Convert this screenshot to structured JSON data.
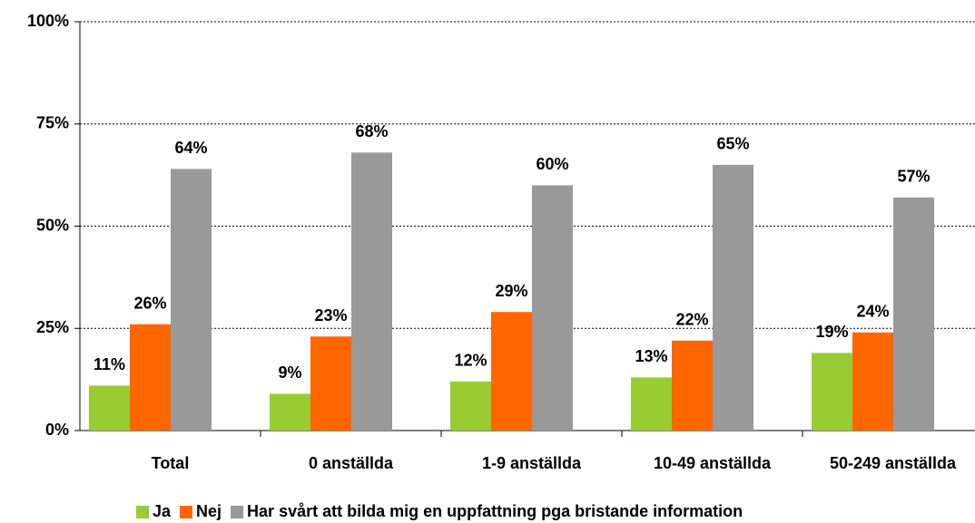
{
  "chart_data": {
    "type": "bar",
    "categories": [
      "Total",
      "0 anställda",
      "1-9 anställda",
      "10-49 anställda",
      "50-249 anställda"
    ],
    "series": [
      {
        "name": "Ja",
        "color": "#99cc33",
        "values": [
          11,
          9,
          12,
          13,
          19
        ],
        "value_labels": [
          "11%",
          "9%",
          "12%",
          "13%",
          "19%"
        ]
      },
      {
        "name": "Nej",
        "color": "#ff6600",
        "values": [
          26,
          23,
          29,
          22,
          24
        ],
        "value_labels": [
          "26%",
          "23%",
          "29%",
          "22%",
          "24%"
        ]
      },
      {
        "name": "Har svårt att bilda mig en uppfattning pga bristande information",
        "color": "#999999",
        "values": [
          64,
          68,
          60,
          65,
          57
        ],
        "value_labels": [
          "64%",
          "68%",
          "60%",
          "65%",
          "57%"
        ]
      }
    ],
    "ylim": [
      0,
      100
    ],
    "yticks": [
      {
        "value": 0,
        "label": "0%"
      },
      {
        "value": 25,
        "label": "25%"
      },
      {
        "value": 50,
        "label": "50%"
      },
      {
        "value": 75,
        "label": "75%"
      },
      {
        "value": 100,
        "label": "100%"
      }
    ],
    "grid": true,
    "legend": "bottom"
  }
}
